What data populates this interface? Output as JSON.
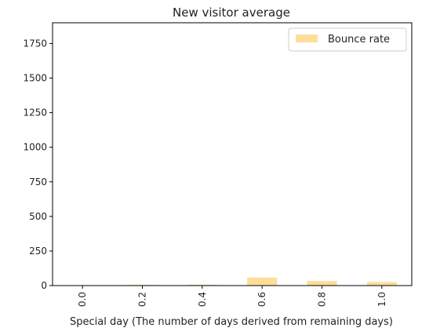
{
  "chart_data": {
    "type": "bar",
    "title": "New visitor average",
    "xlabel": "Special day (The number of days derived from remaining days)",
    "ylabel": "",
    "categories": [
      "0.0",
      "0.2",
      "0.4",
      "0.6",
      "0.8",
      "1.0"
    ],
    "series": [
      {
        "name": "Bounce rate",
        "values": [
          0,
          5,
          6,
          58,
          33,
          26
        ],
        "color": "#ffdd99"
      }
    ],
    "ylim": [
      0,
      1900
    ],
    "yticks": [
      0,
      250,
      500,
      750,
      1000,
      1250,
      1500,
      1750
    ],
    "grid": false,
    "legend_position": "top-right"
  }
}
